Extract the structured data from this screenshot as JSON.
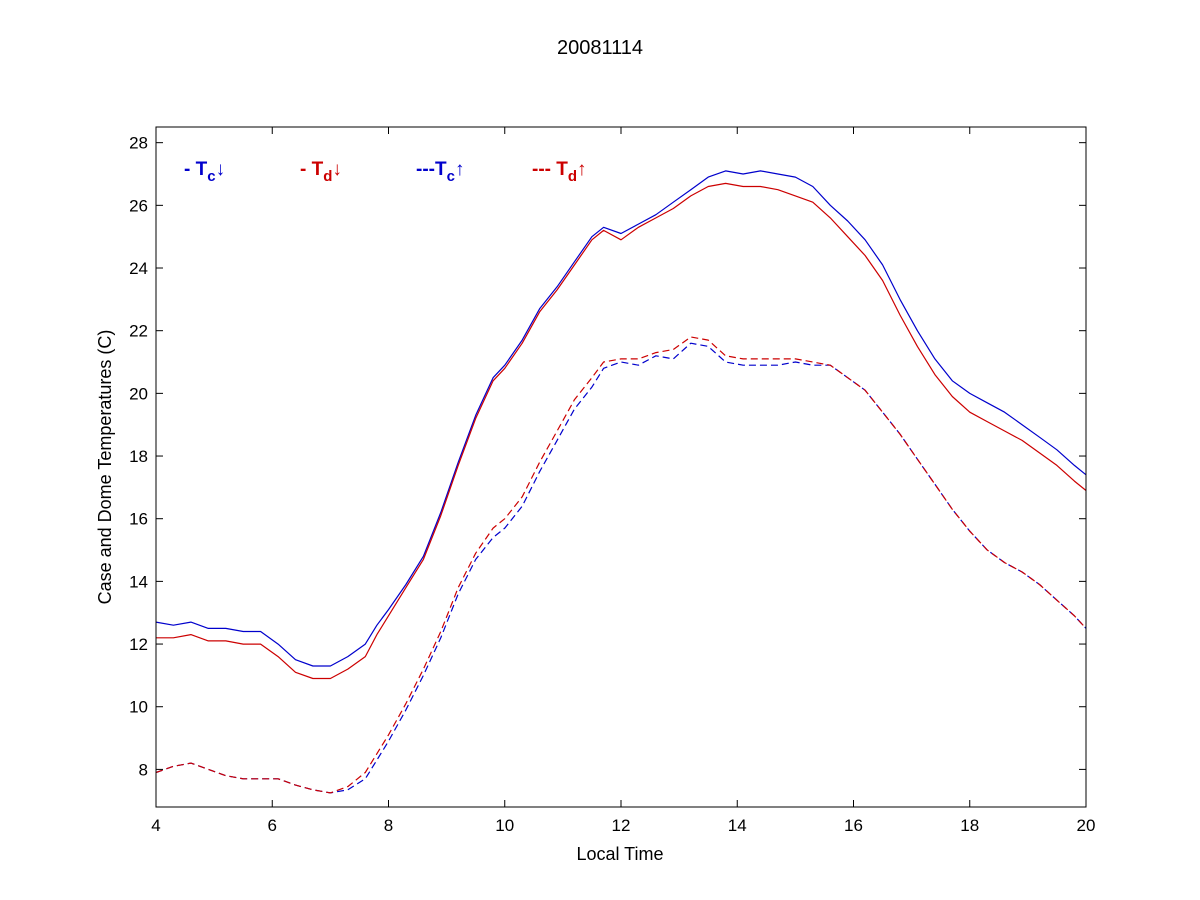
{
  "chart_data": {
    "type": "line",
    "title": "20081114",
    "xlabel": "Local Time",
    "ylabel": "Case and Dome Temperatures (C)",
    "xlim": [
      4,
      20
    ],
    "ylim": [
      6.8,
      28.5
    ],
    "xticks": [
      4,
      6,
      8,
      10,
      12,
      14,
      16,
      18,
      20
    ],
    "yticks": [
      8,
      10,
      12,
      14,
      16,
      18,
      20,
      22,
      24,
      26,
      28
    ],
    "grid": false,
    "legend_position": "top-left (inside, horizontal)",
    "legend": [
      {
        "prefix": "- T",
        "sub": "c",
        "arrow": "↓",
        "color": "#0000cc"
      },
      {
        "prefix": "- T",
        "sub": "d",
        "arrow": "↓",
        "color": "#cc0000"
      },
      {
        "prefix": "---T",
        "sub": "c",
        "arrow": "↑",
        "color": "#0000cc"
      },
      {
        "prefix": "--- T",
        "sub": "d",
        "arrow": "↑",
        "color": "#cc0000"
      }
    ],
    "series": [
      {
        "key": "tc_down",
        "color": "#0000cc",
        "dash": false,
        "x": [
          4.0,
          4.3,
          4.6,
          4.9,
          5.2,
          5.5,
          5.8,
          6.1,
          6.4,
          6.7,
          7.0,
          7.3,
          7.6,
          7.8,
          8.0,
          8.3,
          8.6,
          8.9,
          9.2,
          9.5,
          9.8,
          10.0,
          10.3,
          10.6,
          10.9,
          11.2,
          11.5,
          11.7,
          12.0,
          12.3,
          12.6,
          12.9,
          13.2,
          13.5,
          13.8,
          14.1,
          14.4,
          14.7,
          15.0,
          15.3,
          15.6,
          15.9,
          16.2,
          16.5,
          16.8,
          17.1,
          17.4,
          17.7,
          18.0,
          18.3,
          18.6,
          18.9,
          19.2,
          19.5,
          19.8,
          20.0
        ],
        "y": [
          12.7,
          12.6,
          12.7,
          12.5,
          12.5,
          12.4,
          12.4,
          12.0,
          11.5,
          11.3,
          11.3,
          11.6,
          12.0,
          12.6,
          13.1,
          13.9,
          14.8,
          16.2,
          17.8,
          19.3,
          20.5,
          20.9,
          21.7,
          22.7,
          23.4,
          24.2,
          25.0,
          25.3,
          25.1,
          25.4,
          25.7,
          26.1,
          26.5,
          26.9,
          27.1,
          27.0,
          27.1,
          27.0,
          26.9,
          26.6,
          26.0,
          25.5,
          24.9,
          24.1,
          23.0,
          22.0,
          21.1,
          20.4,
          20.0,
          19.7,
          19.4,
          19.0,
          18.6,
          18.2,
          17.7,
          17.4
        ]
      },
      {
        "key": "td_down",
        "color": "#cc0000",
        "dash": false,
        "x": [
          4.0,
          4.3,
          4.6,
          4.9,
          5.2,
          5.5,
          5.8,
          6.1,
          6.4,
          6.7,
          7.0,
          7.3,
          7.6,
          7.8,
          8.0,
          8.3,
          8.6,
          8.9,
          9.2,
          9.5,
          9.8,
          10.0,
          10.3,
          10.6,
          10.9,
          11.2,
          11.5,
          11.7,
          12.0,
          12.3,
          12.6,
          12.9,
          13.2,
          13.5,
          13.8,
          14.1,
          14.4,
          14.7,
          15.0,
          15.3,
          15.6,
          15.9,
          16.2,
          16.5,
          16.8,
          17.1,
          17.4,
          17.7,
          18.0,
          18.3,
          18.6,
          18.9,
          19.2,
          19.5,
          19.8,
          20.0
        ],
        "y": [
          12.2,
          12.2,
          12.3,
          12.1,
          12.1,
          12.0,
          12.0,
          11.6,
          11.1,
          10.9,
          10.9,
          11.2,
          11.6,
          12.3,
          12.9,
          13.8,
          14.7,
          16.1,
          17.7,
          19.2,
          20.4,
          20.8,
          21.6,
          22.6,
          23.3,
          24.1,
          24.9,
          25.2,
          24.9,
          25.3,
          25.6,
          25.9,
          26.3,
          26.6,
          26.7,
          26.6,
          26.6,
          26.5,
          26.3,
          26.1,
          25.6,
          25.0,
          24.4,
          23.6,
          22.5,
          21.5,
          20.6,
          19.9,
          19.4,
          19.1,
          18.8,
          18.5,
          18.1,
          17.7,
          17.2,
          16.9
        ]
      },
      {
        "key": "tc_up",
        "color": "#0000cc",
        "dash": true,
        "x": [
          4.0,
          4.3,
          4.6,
          4.9,
          5.2,
          5.5,
          5.8,
          6.1,
          6.4,
          6.7,
          7.0,
          7.3,
          7.6,
          7.8,
          8.0,
          8.3,
          8.6,
          8.9,
          9.2,
          9.5,
          9.8,
          10.0,
          10.3,
          10.6,
          10.9,
          11.2,
          11.5,
          11.7,
          12.0,
          12.3,
          12.6,
          12.9,
          13.2,
          13.5,
          13.8,
          14.1,
          14.4,
          14.7,
          15.0,
          15.3,
          15.6,
          15.9,
          16.2,
          16.5,
          16.8,
          17.1,
          17.4,
          17.7,
          18.0,
          18.3,
          18.6,
          18.9,
          19.2,
          19.5,
          19.8,
          20.0
        ],
        "y": [
          7.9,
          8.1,
          8.2,
          8.0,
          7.8,
          7.7,
          7.7,
          7.7,
          7.5,
          7.35,
          7.25,
          7.35,
          7.7,
          8.3,
          8.9,
          9.9,
          11.0,
          12.2,
          13.6,
          14.7,
          15.4,
          15.7,
          16.4,
          17.5,
          18.5,
          19.5,
          20.2,
          20.8,
          21.0,
          20.9,
          21.2,
          21.1,
          21.6,
          21.5,
          21.0,
          20.9,
          20.9,
          20.9,
          21.0,
          20.9,
          20.9,
          20.5,
          20.1,
          19.4,
          18.7,
          17.9,
          17.1,
          16.3,
          15.6,
          15.0,
          14.6,
          14.3,
          13.9,
          13.4,
          12.9,
          12.5
        ]
      },
      {
        "key": "td_up",
        "color": "#cc0000",
        "dash": true,
        "x": [
          4.0,
          4.3,
          4.6,
          4.9,
          5.2,
          5.5,
          5.8,
          6.1,
          6.4,
          6.7,
          7.0,
          7.3,
          7.6,
          7.8,
          8.0,
          8.3,
          8.6,
          8.9,
          9.2,
          9.5,
          9.8,
          10.0,
          10.3,
          10.6,
          10.9,
          11.2,
          11.5,
          11.7,
          12.0,
          12.3,
          12.6,
          12.9,
          13.2,
          13.5,
          13.8,
          14.1,
          14.4,
          14.7,
          15.0,
          15.3,
          15.6,
          15.9,
          16.2,
          16.5,
          16.8,
          17.1,
          17.4,
          17.7,
          18.0,
          18.3,
          18.6,
          18.9,
          19.2,
          19.5,
          19.8,
          20.0
        ],
        "y": [
          7.9,
          8.1,
          8.2,
          8.0,
          7.8,
          7.7,
          7.7,
          7.7,
          7.5,
          7.35,
          7.25,
          7.45,
          7.9,
          8.5,
          9.1,
          10.1,
          11.2,
          12.4,
          13.8,
          14.9,
          15.7,
          16.0,
          16.7,
          17.8,
          18.8,
          19.8,
          20.5,
          21.0,
          21.1,
          21.1,
          21.3,
          21.4,
          21.8,
          21.7,
          21.2,
          21.1,
          21.1,
          21.1,
          21.1,
          21.0,
          20.9,
          20.5,
          20.1,
          19.4,
          18.7,
          17.9,
          17.1,
          16.3,
          15.6,
          15.0,
          14.6,
          14.3,
          13.9,
          13.4,
          12.9,
          12.5
        ]
      }
    ]
  }
}
